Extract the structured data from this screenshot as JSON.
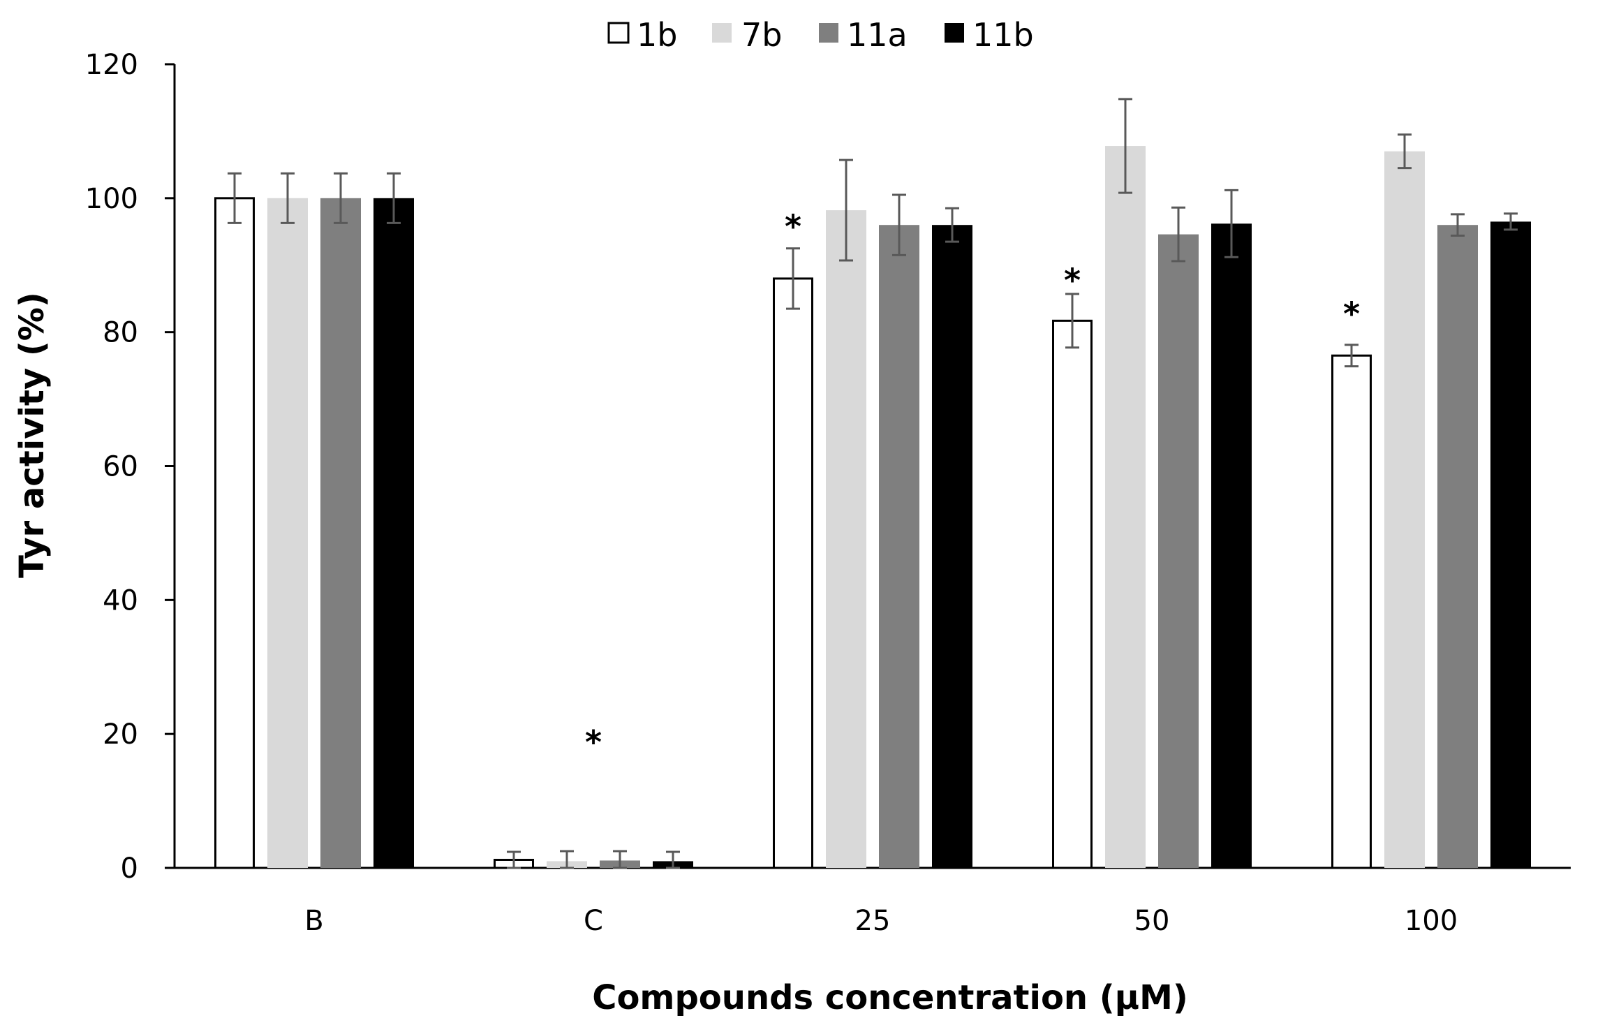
{
  "chart_data": {
    "type": "bar",
    "title": "",
    "xlabel": "Compounds concentration (µM)",
    "ylabel": "Tyr activity (%)",
    "ylim": [
      0,
      120
    ],
    "yticks": [
      0,
      20,
      40,
      60,
      80,
      100,
      120
    ],
    "grid": false,
    "legend": {
      "position": "top-center"
    },
    "categories": [
      "B",
      "C",
      "25",
      "50",
      "100"
    ],
    "series": [
      {
        "name": "1b",
        "color": "#ffffff",
        "stroke": "#000000",
        "values": [
          100,
          1.2,
          88,
          81.7,
          76.5
        ],
        "errors": [
          3.7,
          1.2,
          4.5,
          4,
          1.6
        ]
      },
      {
        "name": "7b",
        "color": "#d9d9d9",
        "stroke": "#d9d9d9",
        "values": [
          100,
          1,
          98.2,
          107.8,
          107
        ],
        "errors": [
          3.7,
          1.5,
          7.5,
          7,
          2.5
        ]
      },
      {
        "name": "11a",
        "color": "#7f7f7f",
        "stroke": "#7f7f7f",
        "values": [
          100,
          1.1,
          96,
          94.6,
          96
        ],
        "errors": [
          3.7,
          1.4,
          4.5,
          4,
          1.6
        ]
      },
      {
        "name": "11b",
        "color": "#000000",
        "stroke": "#000000",
        "values": [
          100,
          1,
          96,
          96.2,
          96.5
        ],
        "errors": [
          3.7,
          1.4,
          2.5,
          5,
          1.2
        ]
      }
    ],
    "annotations": [
      {
        "text": "*",
        "category": "C",
        "y": 20
      },
      {
        "text": "*",
        "category": "25",
        "y": 97
      },
      {
        "text": "*",
        "category": "50",
        "y": 89
      },
      {
        "text": "*",
        "category": "100",
        "y": 84
      }
    ]
  }
}
